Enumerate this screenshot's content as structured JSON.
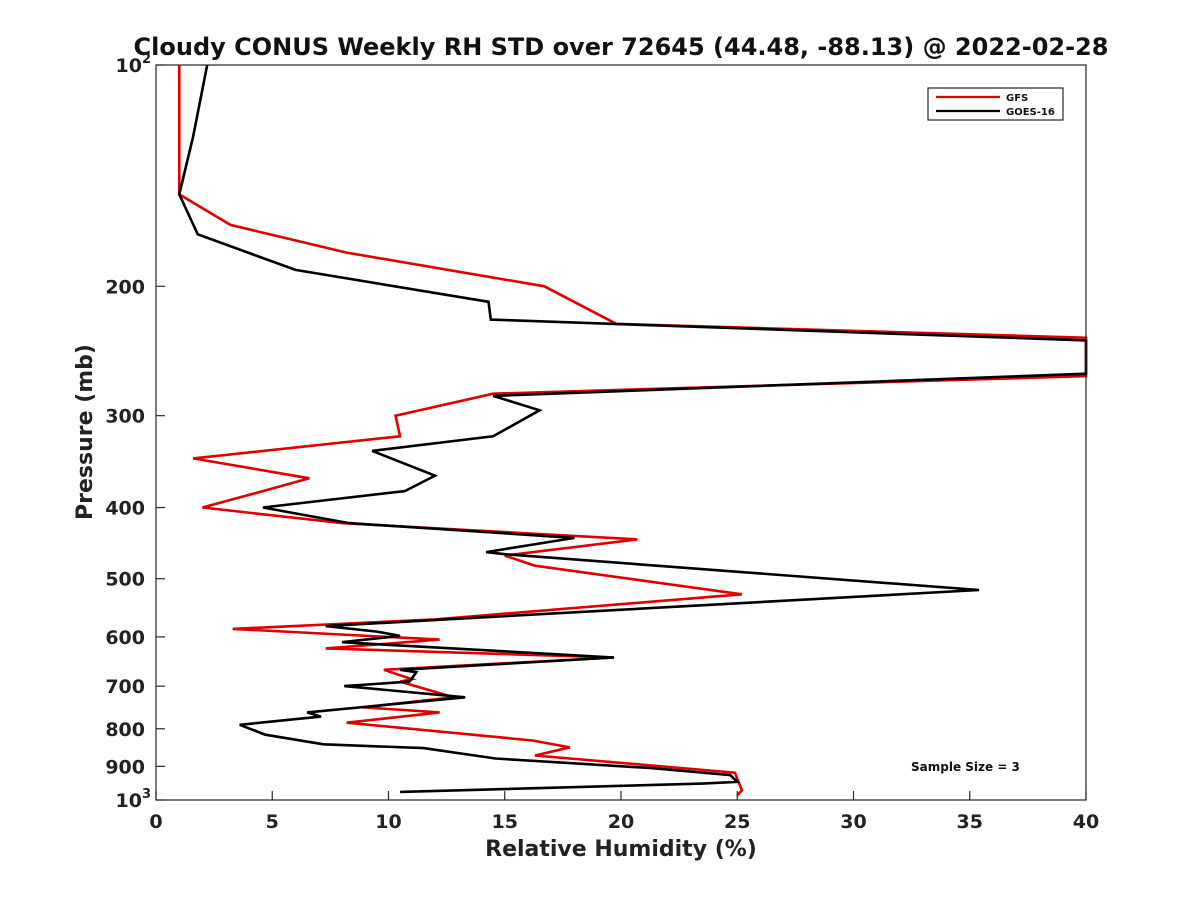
{
  "chart_data": {
    "type": "line",
    "title": "Cloudy CONUS Weekly RH STD over 72645 (44.48, -88.13) @ 2022-02-28",
    "xlabel": "Relative Humidity (%)",
    "ylabel": "Pressure (mb)",
    "xlim": [
      0,
      40
    ],
    "ylim": [
      100,
      1000
    ],
    "y_scale": "log",
    "y_reversed": true,
    "grid": false,
    "legend_position": "top-right",
    "x_ticks": [
      0,
      5,
      10,
      15,
      20,
      25,
      30,
      35,
      40
    ],
    "x_tick_labels": [
      "0",
      "5",
      "10",
      "15",
      "20",
      "25",
      "30",
      "35",
      "40"
    ],
    "y_ticks": [
      {
        "value": 100,
        "label": "10",
        "sup": "2"
      },
      {
        "value": 200,
        "label": "200",
        "sup": ""
      },
      {
        "value": 300,
        "label": "300",
        "sup": ""
      },
      {
        "value": 400,
        "label": "400",
        "sup": ""
      },
      {
        "value": 500,
        "label": "500",
        "sup": ""
      },
      {
        "value": 600,
        "label": "600",
        "sup": ""
      },
      {
        "value": 700,
        "label": "700",
        "sup": ""
      },
      {
        "value": 800,
        "label": "800",
        "sup": ""
      },
      {
        "value": 900,
        "label": "900",
        "sup": ""
      },
      {
        "value": 1000,
        "label": "10",
        "sup": "3"
      }
    ],
    "annotation": "Sample Size = 3",
    "series": [
      {
        "name": "GFS",
        "color": "#e00000",
        "points": [
          [
            1.0,
            100
          ],
          [
            1.0,
            125
          ],
          [
            1.0,
            150
          ],
          [
            3.2,
            165
          ],
          [
            8.2,
            180
          ],
          [
            16.7,
            200
          ],
          [
            19.8,
            225
          ],
          [
            40.0,
            235
          ],
          [
            40.0,
            265
          ],
          [
            14.5,
            280
          ],
          [
            10.3,
            300
          ],
          [
            10.5,
            320
          ],
          [
            1.6,
            343
          ],
          [
            6.6,
            365
          ],
          [
            4.6,
            380
          ],
          [
            2.0,
            400
          ],
          [
            8.0,
            420
          ],
          [
            20.7,
            442
          ],
          [
            15.0,
            465
          ],
          [
            16.3,
            480
          ],
          [
            25.2,
            525
          ],
          [
            12.0,
            568
          ],
          [
            3.3,
            585
          ],
          [
            12.2,
            605
          ],
          [
            7.3,
            622
          ],
          [
            19.7,
            640
          ],
          [
            9.8,
            665
          ],
          [
            11.0,
            685
          ],
          [
            10.5,
            690
          ],
          [
            12.8,
            725
          ],
          [
            8.9,
            748
          ],
          [
            12.2,
            760
          ],
          [
            8.2,
            785
          ],
          [
            16.2,
            830
          ],
          [
            17.8,
            848
          ],
          [
            16.3,
            870
          ],
          [
            24.9,
            918
          ],
          [
            25.2,
            970
          ],
          [
            25.0,
            985
          ]
        ]
      },
      {
        "name": "GOES-16",
        "color": "#000000",
        "points": [
          [
            2.2,
            100
          ],
          [
            1.6,
            125
          ],
          [
            1.0,
            150
          ],
          [
            1.8,
            170
          ],
          [
            6.0,
            190
          ],
          [
            14.3,
            210
          ],
          [
            14.4,
            222
          ],
          [
            40.0,
            237
          ],
          [
            40.0,
            263
          ],
          [
            14.5,
            282
          ],
          [
            16.5,
            295
          ],
          [
            14.5,
            320
          ],
          [
            9.3,
            335
          ],
          [
            12.0,
            362
          ],
          [
            10.7,
            380
          ],
          [
            4.6,
            400
          ],
          [
            8.3,
            420
          ],
          [
            18.0,
            440
          ],
          [
            14.2,
            460
          ],
          [
            15.0,
            463
          ],
          [
            35.4,
            518
          ],
          [
            13.7,
            565
          ],
          [
            7.3,
            580
          ],
          [
            9.5,
            590
          ],
          [
            10.5,
            598
          ],
          [
            8.0,
            610
          ],
          [
            19.7,
            640
          ],
          [
            10.5,
            665
          ],
          [
            11.2,
            670
          ],
          [
            10.9,
            690
          ],
          [
            8.1,
            700
          ],
          [
            13.3,
            725
          ],
          [
            6.5,
            760
          ],
          [
            7.1,
            770
          ],
          [
            3.6,
            790
          ],
          [
            4.7,
            815
          ],
          [
            7.2,
            840
          ],
          [
            11.5,
            850
          ],
          [
            14.6,
            878
          ],
          [
            21.3,
            905
          ],
          [
            24.7,
            925
          ],
          [
            25.0,
            945
          ],
          [
            23.5,
            950
          ],
          [
            10.5,
            975
          ]
        ]
      }
    ]
  }
}
